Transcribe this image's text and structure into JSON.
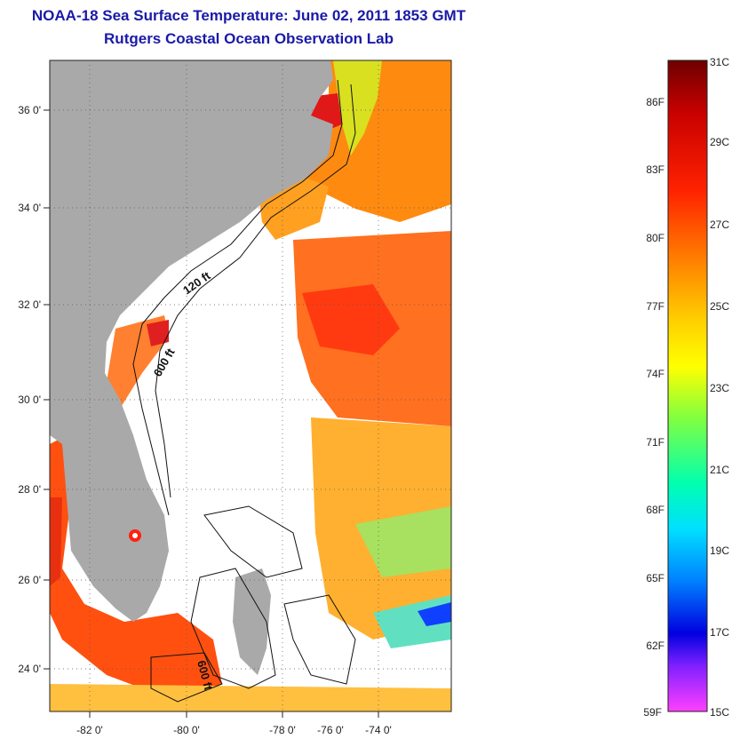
{
  "title_line1": "NOAA-18 Sea Surface Temperature:  June 02, 2011 1853 GMT",
  "title_line2": "Rutgers Coastal Ocean Observation Lab",
  "map": {
    "lon_ticks": [
      "-82 0'",
      "-80 0'",
      "-78 0'",
      "-76 0'",
      "-74 0'"
    ],
    "lat_ticks": [
      "36 0'",
      "34 0'",
      "32 0'",
      "30 0'",
      "28 0'",
      "26 0'",
      "24 0'"
    ],
    "contour_labels": [
      "120 ft",
      "600 ft",
      "600 ft"
    ],
    "land_color": "#a9a9a9",
    "cloud_color": "#ffffff"
  },
  "colorbar": {
    "celsius_labels": [
      "31C",
      "29C",
      "27C",
      "25C",
      "23C",
      "21C",
      "19C",
      "17C",
      "15C"
    ],
    "fahrenheit_labels": [
      "86F",
      "83F",
      "80F",
      "77F",
      "74F",
      "71F",
      "68F",
      "65F",
      "62F",
      "59F"
    ],
    "colors": [
      "#7a0000",
      "#e00000",
      "#ff5a00",
      "#ffc800",
      "#ffff00",
      "#80ff40",
      "#00ffc0",
      "#00c8ff",
      "#0040ff",
      "#0000c8",
      "#8000ff",
      "#ff40ff"
    ]
  }
}
